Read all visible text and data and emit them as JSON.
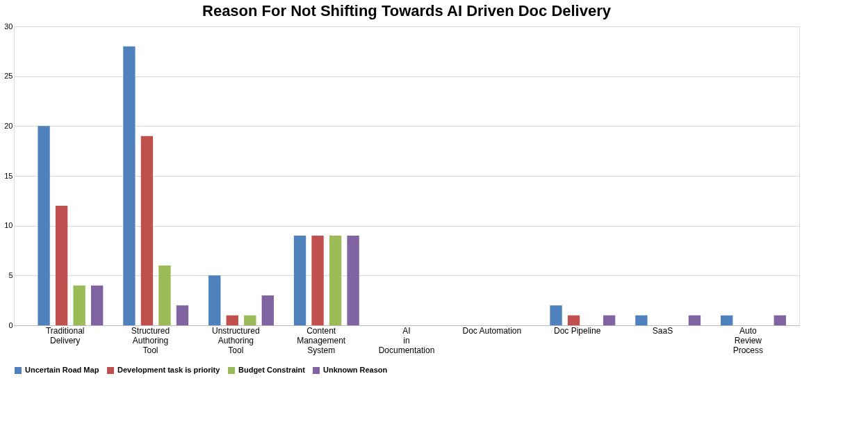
{
  "chart_data": {
    "type": "bar",
    "title": "Reason For Not Shifting Towards AI Driven Doc Delivery",
    "categories": [
      "Traditional Delivery",
      "Structured Authoring Tool",
      "Unstructured Authoring Tool",
      "Content Management System",
      "AI in Documentation",
      "Doc Automation",
      "Doc Pipeline",
      "SaaS",
      "Auto Review Process"
    ],
    "series": [
      {
        "name": "Uncertain Road Map",
        "color": "#4f81bd",
        "values": [
          20,
          28,
          5,
          9,
          0,
          0,
          2,
          1,
          1
        ]
      },
      {
        "name": "Development task is priority",
        "color": "#c0504d",
        "values": [
          12,
          19,
          1,
          9,
          0,
          0,
          1,
          0,
          0
        ]
      },
      {
        "name": "Budget Constraint",
        "color": "#9bbb59",
        "values": [
          4,
          6,
          1,
          9,
          0,
          0,
          0,
          0,
          0
        ]
      },
      {
        "name": "Unknown Reason",
        "color": "#8064a2",
        "values": [
          4,
          2,
          3,
          9,
          0,
          0,
          1,
          1,
          1
        ]
      }
    ],
    "ylim": [
      0,
      30
    ],
    "yticks": [
      0,
      5,
      10,
      15,
      20,
      25,
      30
    ],
    "grid": "y",
    "legend": "bottom"
  }
}
